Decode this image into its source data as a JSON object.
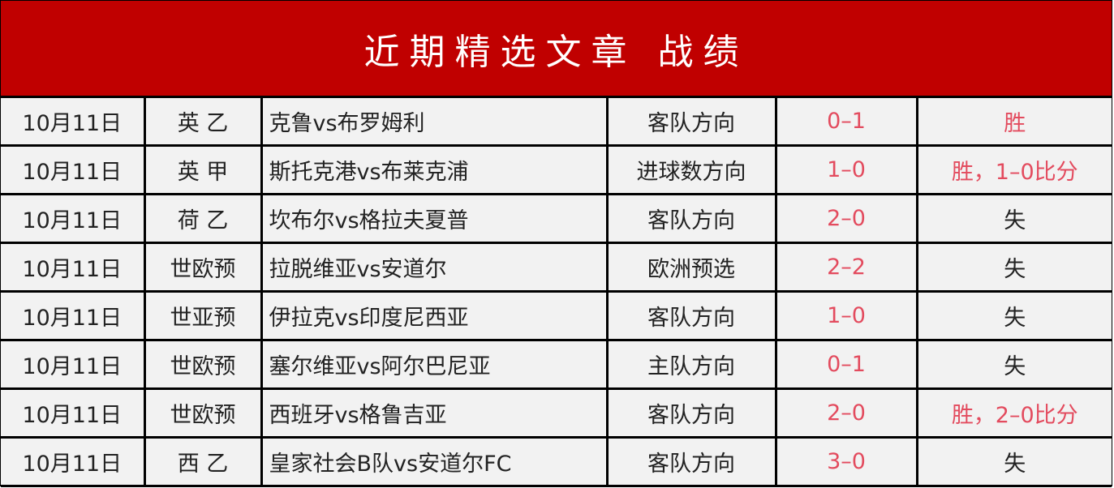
{
  "title": "近期精选文章 战绩",
  "colors": {
    "header_bg": "#c00000",
    "highlight": "#e34b5e"
  },
  "rows": [
    {
      "date": "10月11日",
      "league": "英 乙",
      "match": "克鲁vs布罗姆利",
      "pick": "客队方向",
      "score": "0–1",
      "result": "胜",
      "win": true
    },
    {
      "date": "10月11日",
      "league": "英 甲",
      "match": "斯托克港vs布莱克浦",
      "pick": "进球数方向",
      "score": "1–0",
      "result": "胜，1–0比分",
      "win": true
    },
    {
      "date": "10月11日",
      "league": "荷 乙",
      "match": "坎布尔vs格拉夫夏普",
      "pick": "客队方向",
      "score": "2–0",
      "result": "失",
      "win": false
    },
    {
      "date": "10月11日",
      "league": "世欧预",
      "match": "拉脱维亚vs安道尔",
      "pick": "欧洲预选",
      "score": "2–2",
      "result": "失",
      "win": false
    },
    {
      "date": "10月11日",
      "league": "世亚预",
      "match": "伊拉克vs印度尼西亚",
      "pick": "客队方向",
      "score": "1–0",
      "result": "失",
      "win": false
    },
    {
      "date": "10月11日",
      "league": "世欧预",
      "match": "塞尔维亚vs阿尔巴尼亚",
      "pick": "主队方向",
      "score": "0–1",
      "result": "失",
      "win": false
    },
    {
      "date": "10月11日",
      "league": "世欧预",
      "match": "西班牙vs格鲁吉亚",
      "pick": "客队方向",
      "score": "2–0",
      "result": "胜，2–0比分",
      "win": true
    },
    {
      "date": "10月11日",
      "league": "西 乙",
      "match": "皇家社会B队vs安道尔FC",
      "pick": "客队方向",
      "score": "3–0",
      "result": "失",
      "win": false
    }
  ]
}
